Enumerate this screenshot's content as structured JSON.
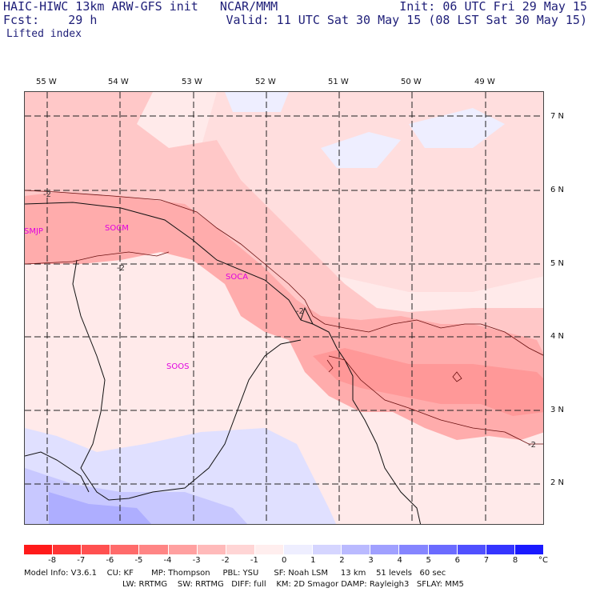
{
  "header": {
    "title_left": "HAIC-HIWC 13km ARW-GFS init   NCAR/MMM",
    "fcst_left": "Fcst:    29 h",
    "init_right": "Init: 06 UTC Fri 29 May 15",
    "valid_right": "Valid: 11 UTC Sat 30 May 15 (08 LST Sat 30 May 15)",
    "field": "Lifted index"
  },
  "map": {
    "longitude_labels": [
      "55 W",
      "54 W",
      "53 W",
      "52 W",
      "51 W",
      "50 W",
      "49 W"
    ],
    "latitude_labels": [
      "7 N",
      "6 N",
      "5 N",
      "4 N",
      "3 N",
      "2 N"
    ],
    "stations": [
      "SMJP",
      "SOCM",
      "SOCA",
      "SOOS"
    ],
    "contour_labels": [
      "-2",
      "-2",
      "-2",
      "-2"
    ]
  },
  "colorbar": {
    "ticks": [
      "-8",
      "-7",
      "-6",
      "-5",
      "-4",
      "-3",
      "-2",
      "-1",
      "0",
      "1",
      "2",
      "3",
      "4",
      "5",
      "6",
      "7",
      "8"
    ],
    "unit": "°C",
    "colors": [
      "#ff1a1a",
      "#ff3535",
      "#ff5050",
      "#ff6b6b",
      "#ff8585",
      "#ffa0a0",
      "#ffbaba",
      "#ffd5d5",
      "#ffeeee",
      "#eeeeff",
      "#d5d5ff",
      "#babaff",
      "#a0a0ff",
      "#8585ff",
      "#6b6bff",
      "#5050ff",
      "#3535ff",
      "#1a1aff"
    ]
  },
  "footer": {
    "line1": "Model Info: V3.6.1    CU: KF       MP: Thompson     PBL: YSU      SF: Noah LSM     13 km    51 levels   60 sec",
    "line2": "LW: RRTMG    SW: RRTMG   DIFF: full    KM: 2D Smagor DAMP: Rayleigh3   SFLAY: MM5"
  }
}
